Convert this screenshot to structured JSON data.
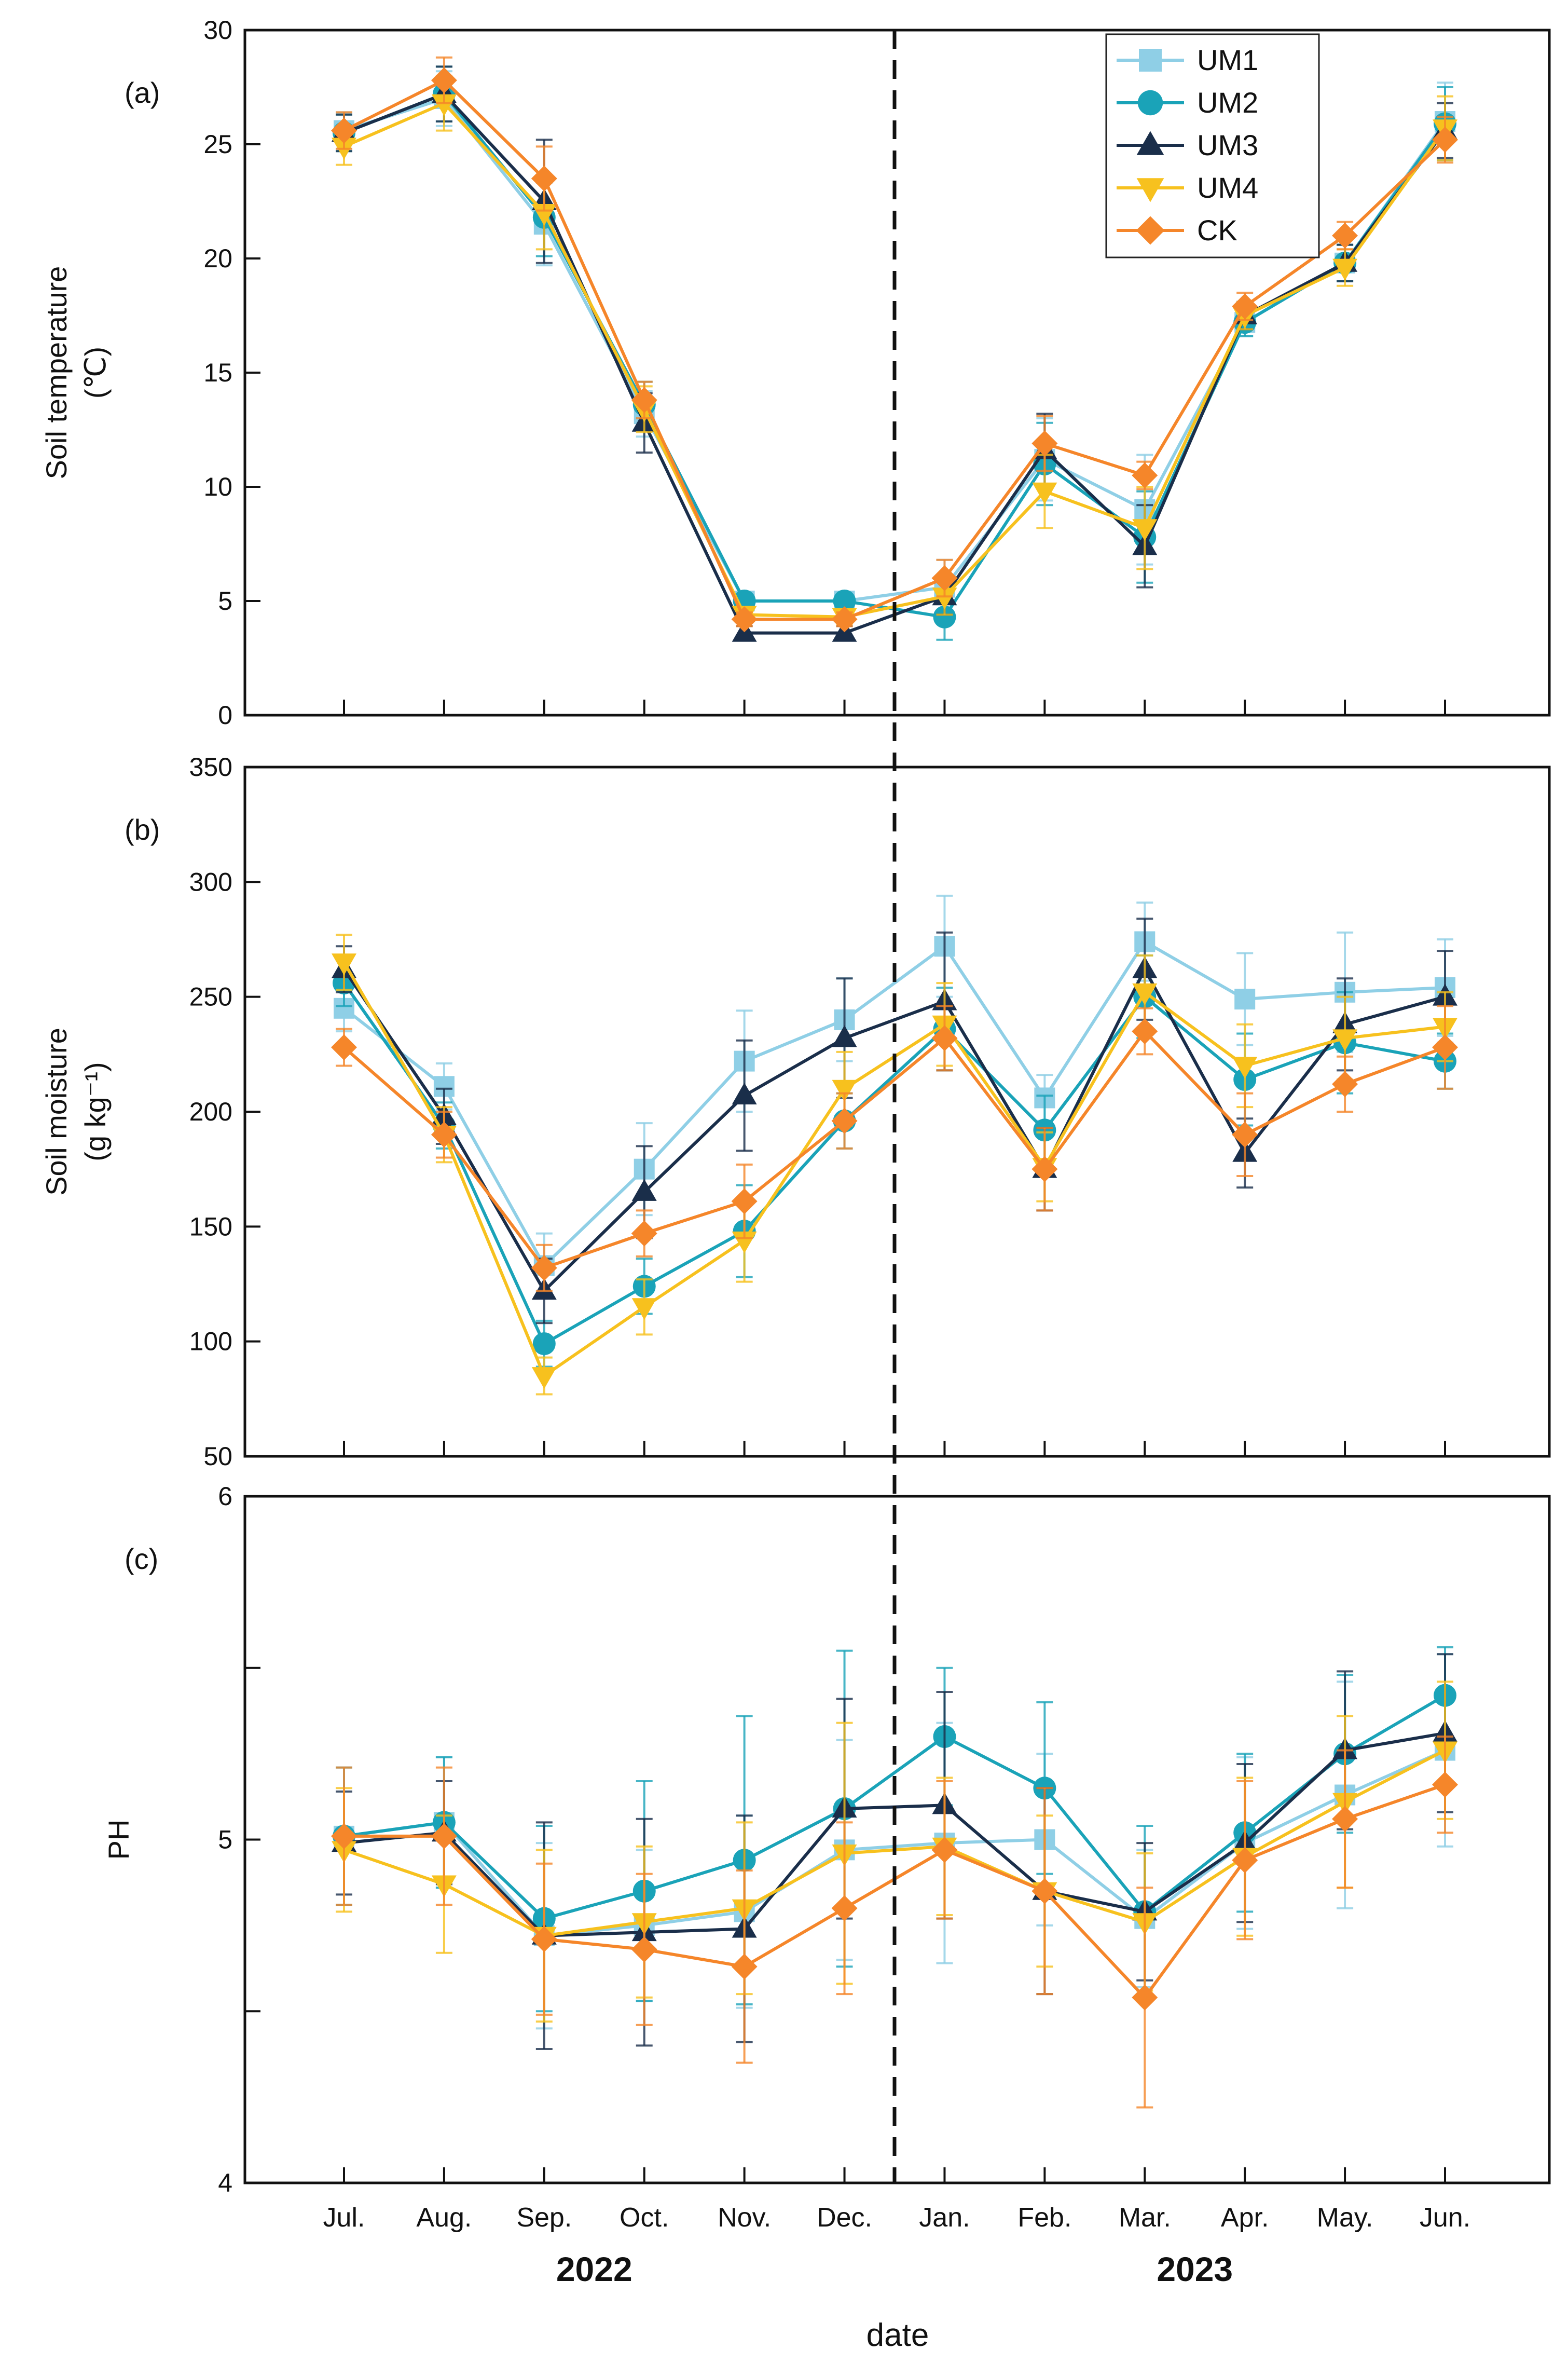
{
  "chart_data": {
    "type": "line",
    "xlabel": "date",
    "categories": [
      "Jul.",
      "Aug.",
      "Sep.",
      "Oct.",
      "Nov.",
      "Dec.",
      "Jan.",
      "Feb.",
      "Mar.",
      "Apr.",
      "May.",
      "Jun."
    ],
    "year_groups": [
      {
        "label": "2022",
        "categories": [
          "Jul.",
          "Aug.",
          "Sep.",
          "Oct.",
          "Nov.",
          "Dec."
        ]
      },
      {
        "label": "2023",
        "categories": [
          "Jan.",
          "Feb.",
          "Mar.",
          "Apr.",
          "May.",
          "Jun."
        ]
      }
    ],
    "divider": "dashed vertical line between Dec. and Jan.",
    "legend": {
      "location": "top-right of panel (a)",
      "entries": [
        "UM1",
        "UM2",
        "UM3",
        "UM4",
        "CK"
      ]
    },
    "series_styles": [
      {
        "name": "UM1",
        "color": "#8fcfe6",
        "marker": "square"
      },
      {
        "name": "UM2",
        "color": "#1aa3b8",
        "marker": "circle"
      },
      {
        "name": "UM3",
        "color": "#1a2e4a",
        "marker": "triangle-up"
      },
      {
        "name": "UM4",
        "color": "#f7c11e",
        "marker": "triangle-down"
      },
      {
        "name": "CK",
        "color": "#f5862a",
        "marker": "diamond"
      }
    ],
    "panels": [
      {
        "label": "(a)",
        "ylabel_lines": [
          "Soil temperature",
          "(℃)"
        ],
        "ylim": [
          0,
          30
        ],
        "yticks": [
          0,
          5,
          10,
          15,
          20,
          25,
          30
        ],
        "tick_labels": [
          "0",
          "5",
          "10",
          "15",
          "20",
          "25",
          "30"
        ],
        "series": [
          {
            "name": "UM1",
            "values": [
              25.6,
              27.0,
              21.5,
              13.2,
              5.0,
              5.0,
              5.6,
              11.2,
              9.0,
              17.2,
              19.8,
              26.0
            ],
            "errors": [
              0.8,
              1.2,
              1.8,
              1.0,
              0.3,
              0.3,
              1.2,
              1.8,
              2.4,
              0.6,
              0.8,
              1.7
            ]
          },
          {
            "name": "UM2",
            "values": [
              25.5,
              27.2,
              21.8,
              13.6,
              5.0,
              5.0,
              4.3,
              11.0,
              7.8,
              17.2,
              19.8,
              25.9
            ],
            "errors": [
              0.8,
              1.2,
              1.7,
              1.0,
              0.3,
              0.3,
              1.0,
              1.8,
              2.0,
              0.6,
              0.8,
              1.6
            ]
          },
          {
            "name": "UM3",
            "values": [
              25.5,
              27.2,
              22.5,
              12.8,
              3.6,
              3.6,
              5.2,
              11.6,
              7.4,
              17.5,
              19.8,
              25.6
            ],
            "errors": [
              0.8,
              1.2,
              2.7,
              1.3,
              0.3,
              0.3,
              0.8,
              1.6,
              1.8,
              0.6,
              0.8,
              1.2
            ]
          },
          {
            "name": "UM4",
            "values": [
              24.9,
              26.8,
              22.0,
              13.4,
              4.4,
              4.3,
              5.2,
              9.8,
              8.2,
              17.5,
              19.6,
              25.7
            ],
            "errors": [
              0.8,
              1.2,
              1.6,
              1.0,
              0.3,
              0.3,
              0.8,
              1.6,
              1.8,
              0.6,
              0.8,
              1.4
            ]
          },
          {
            "name": "CK",
            "values": [
              25.6,
              27.8,
              23.5,
              13.8,
              4.2,
              4.2,
              6.0,
              11.9,
              10.5,
              17.9,
              21.0,
              25.2
            ],
            "errors": [
              0.8,
              1.0,
              1.4,
              0.8,
              0.3,
              0.3,
              0.8,
              1.2,
              0.6,
              0.6,
              0.6,
              1.0
            ]
          }
        ]
      },
      {
        "label": "(b)",
        "ylabel_lines": [
          "Soil moisture",
          "(g kg⁻¹)"
        ],
        "ylim": [
          50,
          350
        ],
        "yticks": [
          50,
          100,
          150,
          200,
          250,
          300,
          350
        ],
        "tick_labels": [
          "50",
          "100",
          "150",
          "200",
          "250",
          "300",
          "350"
        ],
        "series": [
          {
            "name": "UM1",
            "values": [
              245,
              211,
              133,
              175,
              222,
              240,
              272,
              206,
              274,
              249,
              252,
              254
            ],
            "errors": [
              10,
              10,
              14,
              20,
              22,
              18,
              22,
              10,
              17,
              20,
              26,
              21
            ]
          },
          {
            "name": "UM2",
            "values": [
              256,
              194,
              99,
              124,
              148,
              196,
              236,
              192,
              250,
              214,
              230,
              222
            ],
            "errors": [
              10,
              10,
              10,
              12,
              20,
              12,
              18,
              15,
              18,
              20,
              22,
              12
            ]
          },
          {
            "name": "UM3",
            "values": [
              262,
              198,
              122,
              165,
              207,
              232,
              248,
              175,
              262,
              182,
              238,
              250
            ],
            "errors": [
              10,
              12,
              14,
              20,
              24,
              26,
              30,
              18,
              22,
              15,
              20,
              20
            ]
          },
          {
            "name": "UM4",
            "values": [
              265,
              190,
              85,
              115,
              144,
              210,
              238,
              176,
              252,
              220,
              232,
              237
            ],
            "errors": [
              12,
              12,
              8,
              12,
              18,
              16,
              18,
              15,
              16,
              18,
              18,
              15
            ]
          },
          {
            "name": "CK",
            "values": [
              228,
              190,
              132,
              147,
              161,
              196,
              232,
              175,
              235,
              190,
              212,
              228
            ],
            "errors": [
              8,
              10,
              10,
              10,
              16,
              12,
              14,
              18,
              10,
              18,
              12,
              18
            ]
          }
        ]
      },
      {
        "label": "(c)",
        "ylabel_lines": [
          "PH"
        ],
        "ylim": [
          4,
          6
        ],
        "yticks": [
          4,
          4.5,
          5,
          5.5,
          6
        ],
        "tick_labels": [
          "4",
          "",
          "5",
          "",
          "6"
        ],
        "series": [
          {
            "name": "UM1",
            "values": [
              5.01,
              5.05,
              4.72,
              4.75,
              4.79,
              4.97,
              4.99,
              5.0,
              4.77,
              4.99,
              5.13,
              5.26
            ],
            "errors": [
              0.2,
              0.19,
              0.27,
              0.22,
              0.28,
              0.32,
              0.35,
              0.25,
              0.2,
              0.25,
              0.33,
              0.28
            ]
          },
          {
            "name": "UM2",
            "values": [
              5.01,
              5.05,
              4.77,
              4.85,
              4.94,
              5.09,
              5.3,
              5.15,
              4.79,
              5.02,
              5.25,
              5.42
            ],
            "errors": [
              0.2,
              0.19,
              0.27,
              0.32,
              0.42,
              0.46,
              0.2,
              0.25,
              0.25,
              0.23,
              0.23,
              0.14
            ]
          },
          {
            "name": "UM3",
            "values": [
              4.99,
              5.02,
              4.72,
              4.73,
              4.74,
              5.09,
              5.1,
              4.85,
              4.79,
              4.99,
              5.26,
              5.31
            ],
            "errors": [
              0.15,
              0.15,
              0.33,
              0.33,
              0.33,
              0.32,
              0.33,
              0.3,
              0.2,
              0.23,
              0.23,
              0.23
            ]
          },
          {
            "name": "UM4",
            "values": [
              4.97,
              4.87,
              4.72,
              4.76,
              4.8,
              4.96,
              4.98,
              4.85,
              4.76,
              4.95,
              5.11,
              5.26
            ],
            "errors": [
              0.18,
              0.2,
              0.25,
              0.22,
              0.25,
              0.38,
              0.2,
              0.22,
              0.2,
              0.23,
              0.25,
              0.2
            ]
          },
          {
            "name": "CK",
            "values": [
              5.01,
              5.01,
              4.71,
              4.68,
              4.63,
              4.8,
              4.97,
              4.85,
              4.54,
              4.94,
              5.06,
              5.16
            ],
            "errors": [
              0.2,
              0.2,
              0.22,
              0.22,
              0.28,
              0.25,
              0.2,
              0.3,
              0.32,
              0.23,
              0.2,
              0.14
            ]
          }
        ]
      }
    ]
  }
}
